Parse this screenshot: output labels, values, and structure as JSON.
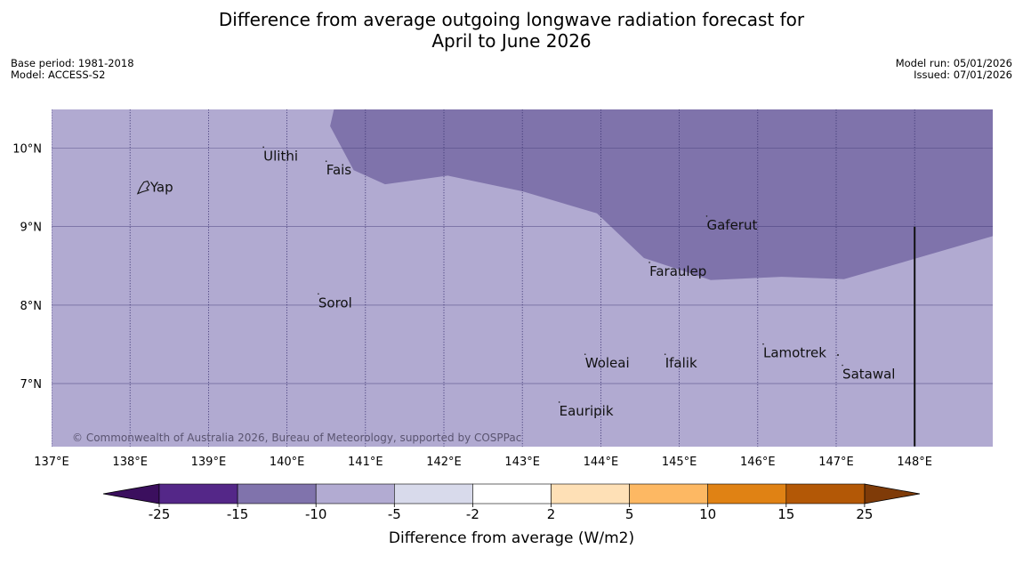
{
  "title": {
    "line1": "Difference from average outgoing longwave radiation forecast for",
    "line2": "April to June 2026"
  },
  "meta_left": {
    "base_period": "Base period: 1981-2018",
    "model": "Model: ACCESS-S2"
  },
  "meta_right": {
    "model_run": "Model run: 05/01/2026",
    "issued": "Issued: 07/01/2026"
  },
  "map": {
    "lon_range": [
      137,
      149
    ],
    "lat_range": [
      6.2,
      10.5
    ],
    "lon_ticks": [
      {
        "value": 137,
        "label": "137°E"
      },
      {
        "value": 138,
        "label": "138°E"
      },
      {
        "value": 139,
        "label": "139°E"
      },
      {
        "value": 140,
        "label": "140°E"
      },
      {
        "value": 141,
        "label": "141°E"
      },
      {
        "value": 142,
        "label": "142°E"
      },
      {
        "value": 143,
        "label": "143°E"
      },
      {
        "value": 144,
        "label": "144°E"
      },
      {
        "value": 145,
        "label": "145°E"
      },
      {
        "value": 146,
        "label": "146°E"
      },
      {
        "value": 147,
        "label": "147°E"
      },
      {
        "value": 148,
        "label": "148°E"
      }
    ],
    "lat_ticks": [
      {
        "value": 10,
        "label": "10°N"
      },
      {
        "value": 9,
        "label": "9°N"
      },
      {
        "value": 8,
        "label": "8°N"
      },
      {
        "value": 7,
        "label": "7°N"
      }
    ],
    "background_class": "-10 to -5",
    "region_class": "-15 to -10",
    "region_boundary": [
      [
        140.6,
        10.5
      ],
      [
        140.55,
        10.28
      ],
      [
        140.85,
        9.72
      ],
      [
        141.25,
        9.54
      ],
      [
        142.05,
        9.65
      ],
      [
        143.0,
        9.45
      ],
      [
        143.95,
        9.17
      ],
      [
        144.55,
        8.6
      ],
      [
        145.4,
        8.32
      ],
      [
        146.3,
        8.36
      ],
      [
        147.1,
        8.33
      ],
      [
        149.0,
        8.88
      ],
      [
        149.0,
        10.5
      ]
    ],
    "meridian_line": {
      "lon": 148,
      "lat_from": 9.0,
      "lat_to": 6.2
    },
    "places": [
      {
        "name": "Yap",
        "lon": 138.2,
        "lat": 9.5,
        "island": true
      },
      {
        "name": "Ulithi",
        "lon": 139.7,
        "lat": 9.9
      },
      {
        "name": "Fais",
        "lon": 140.5,
        "lat": 9.72
      },
      {
        "name": "Gaferut",
        "lon": 145.35,
        "lat": 9.02
      },
      {
        "name": "Faraulep",
        "lon": 144.62,
        "lat": 8.43
      },
      {
        "name": "Sorol",
        "lon": 140.4,
        "lat": 8.03
      },
      {
        "name": "Woleai",
        "lon": 143.8,
        "lat": 7.26
      },
      {
        "name": "Ifalik",
        "lon": 144.82,
        "lat": 7.26
      },
      {
        "name": "Lamotrek",
        "lon": 146.07,
        "lat": 7.39
      },
      {
        "name": "Satawal",
        "lon": 147.08,
        "lat": 7.12
      },
      {
        "name": "Eauripik",
        "lon": 143.47,
        "lat": 6.65
      }
    ],
    "copyright": "© Commonwealth of Australia 2026, Bureau of Meteorology, supported by COSPPac"
  },
  "colorbar": {
    "label": "Difference from average (W/m2)",
    "low_extend_color": "#3b0f5e",
    "high_extend_color": "#7f3b08",
    "bins": [
      {
        "color": "#542788"
      },
      {
        "color": "#8073ac"
      },
      {
        "color": "#b2abd2"
      },
      {
        "color": "#d8daeb"
      },
      {
        "color": "#ffffff"
      },
      {
        "color": "#fee0b6"
      },
      {
        "color": "#fdb863"
      },
      {
        "color": "#e08214"
      },
      {
        "color": "#b35806"
      }
    ],
    "tick_labels": [
      "-25",
      "-15",
      "-10",
      "-5",
      "-2",
      "2",
      "5",
      "10",
      "15",
      "25"
    ]
  },
  "colors": {
    "map_background": "#b1aad1",
    "map_region": "#7f73ab",
    "grid": "#3d3573"
  }
}
